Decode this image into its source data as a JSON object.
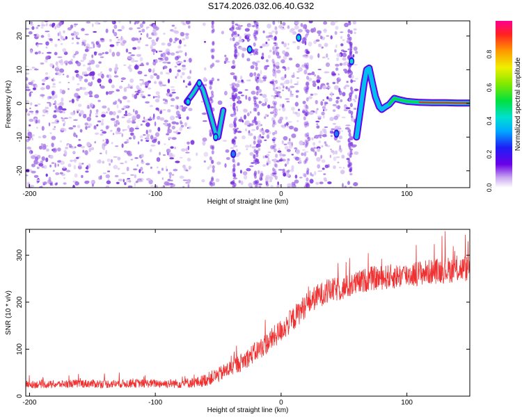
{
  "title": "S174.2026.032.06.40.G32",
  "colors": {
    "speckle_light": "#d9c4f2",
    "speckle_mid": "#a97ae6",
    "speckle_dark": "#7a33e0",
    "snr_line": "#f03030",
    "axis": "#000000"
  },
  "chart_data": [
    {
      "type": "heatmap",
      "name": "spectrogram",
      "title": "",
      "xlabel": "Height of straight line (km)",
      "ylabel": "Frequency (Hz)",
      "xlim": [
        -203,
        150
      ],
      "ylim": [
        -25,
        24.5
      ],
      "xticks": [
        -200,
        -100,
        0,
        100
      ],
      "xtick_labels": [
        "-200",
        "-100",
        "0",
        "100"
      ],
      "yticks": [
        -20,
        -10,
        0,
        10,
        20
      ],
      "ytick_labels": [
        "-20",
        "-10",
        "0",
        "10",
        "20"
      ],
      "colorbar": {
        "label": "Normalized spectral amplitude",
        "range": [
          0,
          1
        ],
        "ticks": [
          0.0,
          0.2,
          0.4,
          0.6,
          0.8
        ],
        "tick_labels": [
          "0.0",
          "0.2",
          "0.4",
          "0.6",
          "0.8"
        ]
      },
      "dominant_ridge": {
        "description": "strong frequency ridge (km, Hz)",
        "x": [
          -75,
          -70,
          -65,
          -62,
          -58,
          -55,
          -52,
          -50,
          -48,
          -46,
          60,
          63,
          66,
          68,
          70,
          72,
          75,
          78,
          80,
          83,
          86,
          90,
          95,
          100,
          110,
          120,
          130,
          140,
          150
        ],
        "y": [
          0.5,
          3.0,
          6.0,
          4.0,
          -1.0,
          -5.0,
          -9.0,
          -10.0,
          -6.0,
          -2.0,
          -10.0,
          -2.0,
          6.0,
          10.0,
          10.5,
          7.0,
          2.0,
          -1.0,
          -1.8,
          -1.0,
          -0.3,
          1.5,
          1.0,
          0.6,
          0.3,
          0.2,
          0.2,
          0.1,
          0.1
        ]
      },
      "hot_spots": [
        {
          "x": -38,
          "y": -15,
          "amplitude": 0.25
        },
        {
          "x": -25,
          "y": 16,
          "amplitude": 0.3
        },
        {
          "x": 14,
          "y": 19.5,
          "amplitude": 0.3
        },
        {
          "x": 44,
          "y": -9,
          "amplitude": 0.25
        },
        {
          "x": 56,
          "y": 12.5,
          "amplitude": 0.35
        },
        {
          "x": -52,
          "y": -10,
          "amplitude": 0.4
        },
        {
          "x": -65,
          "y": 6.0,
          "amplitude": 0.4
        },
        {
          "x": -74,
          "y": 0.5,
          "amplitude": 0.35
        }
      ]
    },
    {
      "type": "line",
      "name": "snr",
      "title": "",
      "xlabel": "Height of straight line (km)",
      "ylabel": "SNR (10 * v/v)",
      "xlim": [
        -203,
        150
      ],
      "ylim": [
        0,
        355
      ],
      "xticks": [
        -200,
        -100,
        0,
        100
      ],
      "xtick_labels": [
        "-200",
        "-100",
        "0",
        "100"
      ],
      "yticks": [
        0,
        100,
        200,
        300
      ],
      "ytick_labels": [
        "0",
        "100",
        "200",
        "300"
      ],
      "series": [
        {
          "name": "SNR",
          "x": [
            -203,
            -180,
            -160,
            -140,
            -120,
            -100,
            -80,
            -65,
            -60,
            -50,
            -40,
            -30,
            -20,
            -10,
            0,
            10,
            20,
            30,
            40,
            50,
            60,
            70,
            80,
            90,
            100,
            110,
            120,
            130,
            140,
            150
          ],
          "y": [
            25,
            25,
            27,
            26,
            27,
            27,
            27,
            30,
            35,
            45,
            60,
            75,
            95,
            115,
            140,
            165,
            195,
            215,
            225,
            230,
            240,
            250,
            252,
            255,
            258,
            262,
            265,
            268,
            270,
            272
          ],
          "noise_amplitude": [
            8,
            8,
            9,
            9,
            9,
            9,
            10,
            12,
            14,
            16,
            18,
            20,
            22,
            24,
            25,
            26,
            26,
            26,
            26,
            26,
            26,
            26,
            26,
            27,
            27,
            27,
            27,
            28,
            28,
            28
          ]
        }
      ]
    }
  ]
}
